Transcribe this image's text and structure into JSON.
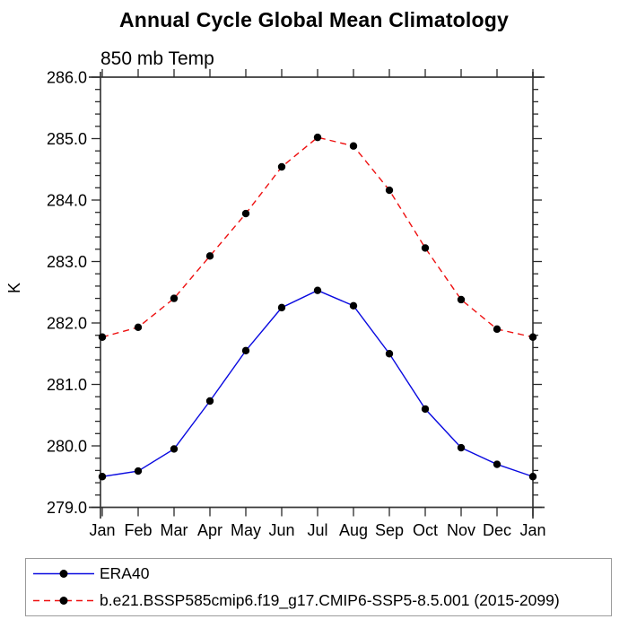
{
  "title": "Annual Cycle Global Mean Climatology",
  "subtitle": "850 mb Temp",
  "colors": {
    "background": "#ffffff",
    "axis": "#3a3a3a",
    "tick": "#2a2a2a",
    "text": "#000000",
    "legend_border": "#9b9b9b",
    "era40_blue": "#0a0ae0",
    "model_red": "#ee1010",
    "marker_black": "#000000"
  },
  "chart_data": {
    "type": "line",
    "title": "Annual Cycle Global Mean Climatology",
    "subtitle": "850 mb Temp",
    "xlabel": "",
    "ylabel": "K",
    "x_categories": [
      "Jan",
      "Feb",
      "Mar",
      "Apr",
      "May",
      "Jun",
      "Jul",
      "Aug",
      "Sep",
      "Oct",
      "Nov",
      "Dec",
      "Jan"
    ],
    "ylim": [
      279.0,
      286.0
    ],
    "y_major_step": 1.0,
    "y_minor_step": 0.2,
    "y_tick_labels": [
      "279.0",
      "280.0",
      "281.0",
      "282.0",
      "283.0",
      "284.0",
      "285.0",
      "286.0"
    ],
    "grid": false,
    "legend_position": "bottom-left-box",
    "series": [
      {
        "name": "ERA40",
        "color": "#0a0ae0",
        "line_style": "solid",
        "marker": "filled-circle",
        "marker_color": "#000000",
        "values": [
          279.5,
          279.59,
          279.95,
          280.73,
          281.55,
          282.25,
          282.53,
          282.28,
          281.5,
          280.6,
          279.97,
          279.7,
          279.5
        ]
      },
      {
        "name": "b.e21.BSSP585cmip6.f19_g17.CMIP6-SSP5-8.5.001 (2015-2099)",
        "color": "#ee1010",
        "line_style": "dashed",
        "marker": "filled-circle",
        "marker_color": "#000000",
        "values": [
          281.77,
          281.93,
          282.4,
          283.09,
          283.78,
          284.54,
          285.02,
          284.88,
          284.16,
          283.22,
          282.38,
          281.9,
          281.77
        ]
      }
    ]
  }
}
